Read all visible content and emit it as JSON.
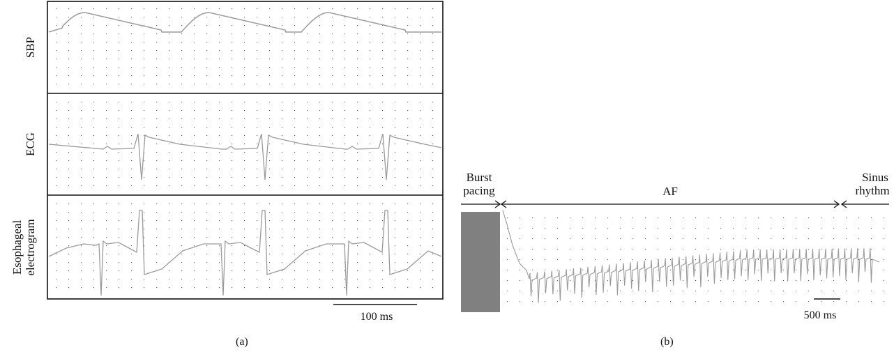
{
  "figure": {
    "panel_a": {
      "label": "(a)",
      "tracks": [
        {
          "label_lines": [
            "SBP"
          ],
          "waveform": "pressure"
        },
        {
          "label_lines": [
            "ECG"
          ],
          "waveform": "ecg"
        },
        {
          "label_lines": [
            "Esophageal",
            "electrogram"
          ],
          "waveform": "esophageal"
        }
      ],
      "scale_bar": {
        "label": "100 ms",
        "duration_ms": 100
      }
    },
    "panel_b": {
      "label": "(b)",
      "phases": {
        "burst": {
          "lines": [
            "Burst",
            "pacing"
          ]
        },
        "af": {
          "label": "AF"
        },
        "sinus": {
          "lines": [
            "Sinus",
            "rhythm"
          ]
        }
      },
      "scale_bar": {
        "label": "500 ms",
        "duration_ms": 500
      }
    }
  },
  "colors": {
    "trace": "#9a9a9a",
    "grid_dots": "#555555",
    "frame": "#111111",
    "burst_block": "#808080"
  }
}
